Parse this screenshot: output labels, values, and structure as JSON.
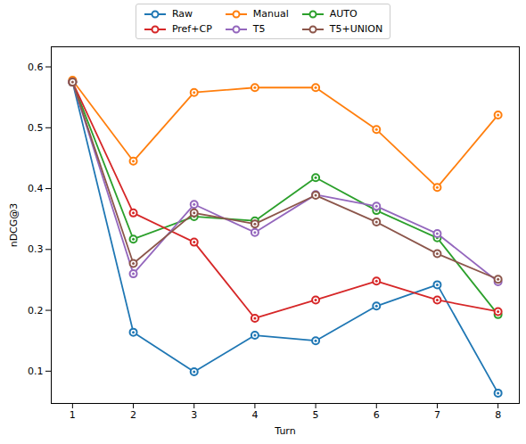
{
  "chart_data": {
    "type": "line",
    "x_label": "Turn",
    "y_label": "nDCG@3",
    "x": [
      1,
      2,
      3,
      4,
      5,
      6,
      7,
      8
    ],
    "xlim": [
      0.65,
      8.35
    ],
    "xticks": [
      1,
      2,
      3,
      4,
      5,
      6,
      7,
      8
    ],
    "ylim": [
      0.047,
      0.633
    ],
    "yticks": [
      0.1,
      0.2,
      0.3,
      0.4,
      0.5,
      0.6
    ],
    "grid": false,
    "legend": "top",
    "marker": "circle",
    "series": [
      {
        "name": "Raw",
        "color": "#1f77b4",
        "values": [
          0.575,
          0.164,
          0.099,
          0.159,
          0.15,
          0.207,
          0.242,
          0.064
        ]
      },
      {
        "name": "Manual",
        "color": "#ff7f0e",
        "values": [
          0.578,
          0.445,
          0.558,
          0.566,
          0.566,
          0.497,
          0.402,
          0.521
        ]
      },
      {
        "name": "AUTO",
        "color": "#2ca02c",
        "values": [
          0.575,
          0.317,
          0.354,
          0.347,
          0.418,
          0.364,
          0.319,
          0.193
        ]
      },
      {
        "name": "Pref+CP",
        "color": "#d62728",
        "values": [
          0.575,
          0.36,
          0.312,
          0.187,
          0.217,
          0.248,
          0.217,
          0.198
        ]
      },
      {
        "name": "T5",
        "color": "#9467bd",
        "values": [
          0.575,
          0.26,
          0.374,
          0.328,
          0.39,
          0.371,
          0.326,
          0.247
        ]
      },
      {
        "name": "T5+UNION",
        "color": "#8c564b",
        "values": [
          0.575,
          0.277,
          0.36,
          0.342,
          0.389,
          0.345,
          0.293,
          0.251
        ]
      }
    ]
  }
}
